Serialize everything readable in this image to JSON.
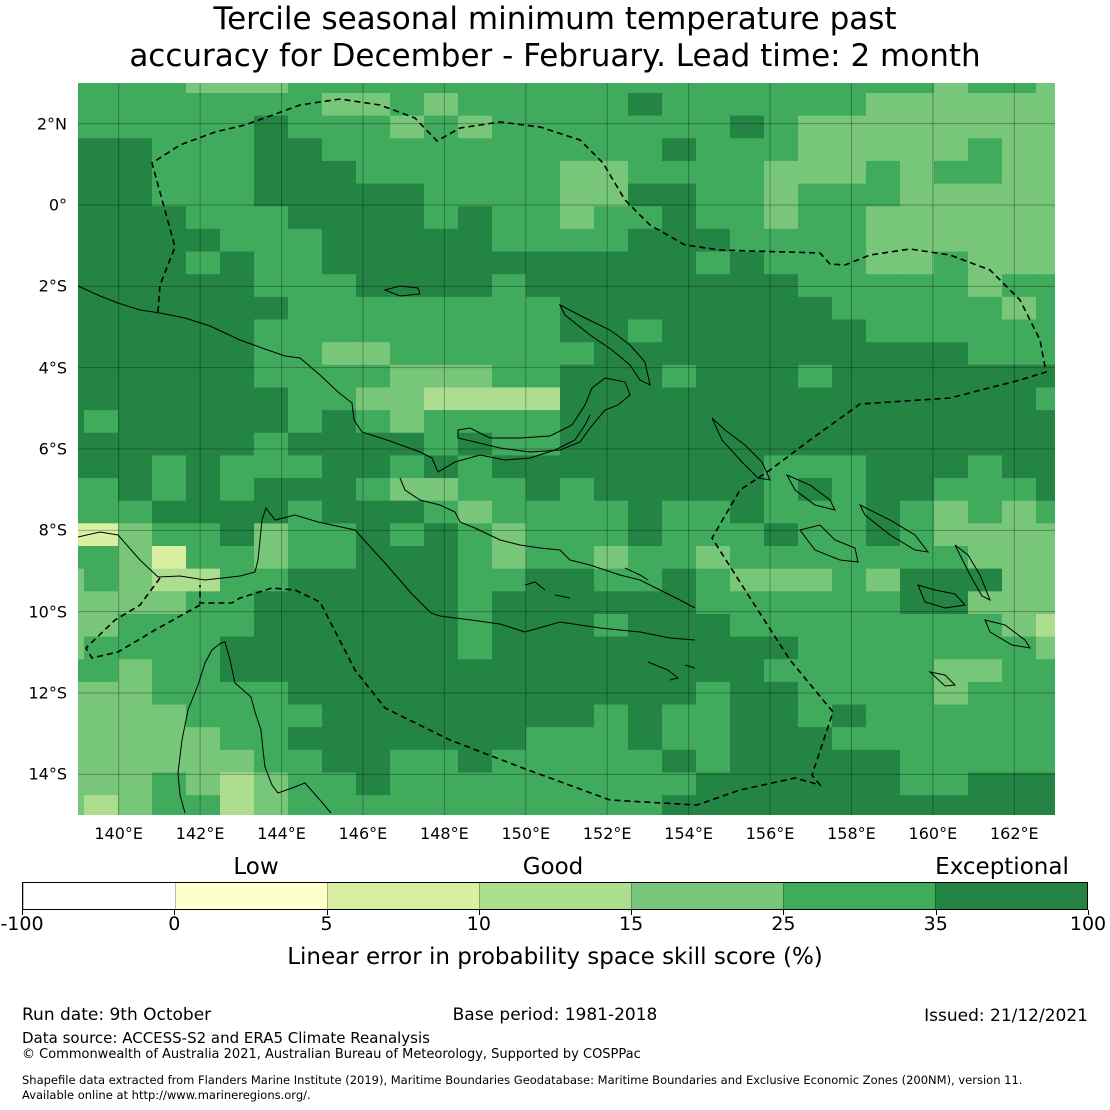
{
  "title": {
    "line1": "Tercile seasonal minimum temperature past",
    "line2": "accuracy for December - February. Lead time: 2 month"
  },
  "map": {
    "extent": {
      "lon_min": 139,
      "lon_max": 163,
      "lat_min": -15,
      "lat_max": 3
    },
    "lon_ticks": [
      {
        "value": 140,
        "label": "140°E"
      },
      {
        "value": 142,
        "label": "142°E"
      },
      {
        "value": 144,
        "label": "144°E"
      },
      {
        "value": 146,
        "label": "146°E"
      },
      {
        "value": 148,
        "label": "148°E"
      },
      {
        "value": 150,
        "label": "150°E"
      },
      {
        "value": 152,
        "label": "152°E"
      },
      {
        "value": 154,
        "label": "154°E"
      },
      {
        "value": 156,
        "label": "156°E"
      },
      {
        "value": 158,
        "label": "158°E"
      },
      {
        "value": 160,
        "label": "160°E"
      },
      {
        "value": 162,
        "label": "162°E"
      }
    ],
    "lat_ticks": [
      {
        "value": 2,
        "label": "2°N"
      },
      {
        "value": 0,
        "label": "0°"
      },
      {
        "value": -2,
        "label": "2°S"
      },
      {
        "value": -4,
        "label": "4°S"
      },
      {
        "value": -6,
        "label": "6°S"
      },
      {
        "value": -8,
        "label": "8°S"
      },
      {
        "value": -10,
        "label": "10°S"
      },
      {
        "value": -12,
        "label": "12°S"
      },
      {
        "value": -14,
        "label": "14°S"
      }
    ],
    "category_colors": {
      "W": "#ffffcc",
      "Y": "#d9f0a3",
      "P": "#addd8e",
      "L": "#78c679",
      "M": "#41ab5d",
      "D": "#238443"
    },
    "skill_grid": [
      "MMMMLLLMMMMMMMMMMMMMMMMMMMLMML",
      "MMMMMMMMLLMLMMMMMDMMMMMMLLLLLL",
      "MMMMMMDMMMLMLMMMMMMMDMLLLLLLLL",
      "DDDMMMDDMMMMMMMMMMDMMMLLLLLMLL",
      "DDDMMMDDDMMMMMMLLMMMMLLLMLMMLL",
      "DDDMMMDDDDDMMMMLLDDMMLMMMLLLLL",
      "DDDDMMMDDDDMDMMLMMDMMLMMLLLLLL",
      "DDDDDMMMDDDDDMMMMDDDMMMMLLLLLL",
      "DDDDMDMMDDDDDDDDDDDMDMMMLLMLLL",
      "DDDDDDMMMDDDDMDDDDDDDDMMMMMLMM",
      "DDDDDDDMMMMMMMMDDDDDDDDMMMMMLM",
      "DDDDDDMMMMMMMMMDDMDDDDDDMMMMMM",
      "DDDDDDMMLLMMMMMMDDDDDDDDDDDMMM",
      "DDDDDDMMMMLLLMMDDDMDDDMDDDDDDD",
      "DDDDDDDMMLLPPPPDDDDDDDDDDDDDDM",
      "DMDDDDDMDMLMMMMDDDDDDDDDDDDDDD",
      "DDDDDDMDDDDMDMMDDDDDDDDDDDDDDD",
      "DDDMDMMMDDMDMDDDDDDDDMMMDDDMDD",
      "MMDMDMDDDMLLMMDMDDDDDMDMDDMMMD",
      "MMMDDDDMDDDMLMMMMDMMDMMMDMLMLM",
      "YYLMMDLMMDMDMLMMMDMMMDMMDMLLLL",
      "MMLYMMLMMDDDMLMMLMMLMMMMMMMLLL",
      "LMLPPMMDDDDDMMDDMMDMLLLMLDDDLL",
      "LLLLMMDDDDDDMDDDDDDMMMMMMDDLLL",
      "LLMMMMDDDDDDMDDDMDDDMMMMMMMMLP",
      "LMMMMDDDDDDDMDDDDDDDDDMMMMMMML",
      "MMLMMDDDDDDDDDDDDDDDDMMMMMLLMM",
      "LLLMMMMDDDDDDDDDDDDMDDMMMMLMMM",
      "LLLLMMMMDDDDDDDDMDMMDDMDMMMMMM",
      "LLLLLMMDDDDDDDMMMDMMDDDMMMMMMM",
      "LLLLLLMMDDMMDMMMMMDMDDDDDMMMMM",
      "LLLMLPLMMDMMMMMMMMMDDDDDDMMDDD",
      "LPLMMPLMMMMMMMMMMMDDDDDDDDDDDD"
    ]
  },
  "legend": {
    "categories": {
      "low": "Low",
      "good": "Good",
      "exceptional": "Exceptional"
    },
    "bins": [
      {
        "from": -100,
        "to": 0,
        "color": "#ffffff"
      },
      {
        "from": 0,
        "to": 5,
        "color": "#ffffcc"
      },
      {
        "from": 5,
        "to": 10,
        "color": "#d9f0a3"
      },
      {
        "from": 10,
        "to": 15,
        "color": "#addd8e"
      },
      {
        "from": 15,
        "to": 25,
        "color": "#78c679"
      },
      {
        "from": 25,
        "to": 35,
        "color": "#41ab5d"
      },
      {
        "from": 35,
        "to": 100,
        "color": "#238443"
      }
    ],
    "tick_labels": [
      "-100",
      "0",
      "5",
      "10",
      "15",
      "25",
      "35",
      "100"
    ],
    "axis_label": "Linear error in probability space skill score (%)"
  },
  "footer": {
    "run_date": "Run date: 9th October",
    "base_period": "Base period: 1981-2018",
    "issued": "Issued: 21/12/2021",
    "data_source": "Data source: ACCESS-S2 and ERA5 Climate Reanalysis",
    "copyright": "© Commonwealth of Australia 2021, Australian Bureau of Meteorology, Supported by COSPPac",
    "shapefile_line1": "Shapefile data extracted from Flanders Marine Institute (2019), Maritime Boundaries Geodatabase: Maritime Boundaries and Exclusive Economic Zones (200NM), version 11.",
    "shapefile_line2": "Available online at http://www.marineregions.org/."
  }
}
